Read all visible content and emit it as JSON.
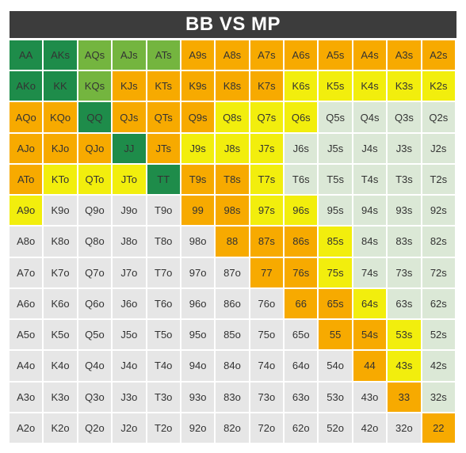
{
  "chart_data": {
    "type": "table",
    "title": "BB VS MP",
    "ranks": [
      "A",
      "K",
      "Q",
      "J",
      "T",
      "9",
      "8",
      "7",
      "6",
      "5",
      "4",
      "3",
      "2"
    ],
    "colors": {
      "D": "#1e8c4a",
      "L": "#74b53f",
      "O": "#f7aa00",
      "Y": "#f2ee0d",
      "G": "#dbe8d6",
      "W": "#e6e6e6"
    },
    "rows": [
      {
        "labels": [
          "AA",
          "AKs",
          "AQs",
          "AJs",
          "ATs",
          "A9s",
          "A8s",
          "A7s",
          "A6s",
          "A5s",
          "A4s",
          "A3s",
          "A2s"
        ],
        "colors": "DDLLLOOOOOOOO"
      },
      {
        "labels": [
          "AKo",
          "KK",
          "KQs",
          "KJs",
          "KTs",
          "K9s",
          "K8s",
          "K7s",
          "K6s",
          "K5s",
          "K4s",
          "K3s",
          "K2s"
        ],
        "colors": "DDLOOOOOYYYYY"
      },
      {
        "labels": [
          "AQo",
          "KQo",
          "QQ",
          "QJs",
          "QTs",
          "Q9s",
          "Q8s",
          "Q7s",
          "Q6s",
          "Q5s",
          "Q4s",
          "Q3s",
          "Q2s"
        ],
        "colors": "OODOOOYYYGGGG"
      },
      {
        "labels": [
          "AJo",
          "KJo",
          "QJo",
          "JJ",
          "JTs",
          "J9s",
          "J8s",
          "J7s",
          "J6s",
          "J5s",
          "J4s",
          "J3s",
          "J2s"
        ],
        "colors": "OOODOYYYGGGGG"
      },
      {
        "labels": [
          "ATo",
          "KTo",
          "QTo",
          "JTo",
          "TT",
          "T9s",
          "T8s",
          "T7s",
          "T6s",
          "T5s",
          "T4s",
          "T3s",
          "T2s"
        ],
        "colors": "OYYYDOOYGGGGG"
      },
      {
        "labels": [
          "A9o",
          "K9o",
          "Q9o",
          "J9o",
          "T9o",
          "99",
          "98s",
          "97s",
          "96s",
          "95s",
          "94s",
          "93s",
          "92s"
        ],
        "colors": "YWWWWOOYYGGGG"
      },
      {
        "labels": [
          "A8o",
          "K8o",
          "Q8o",
          "J8o",
          "T8o",
          "98o",
          "88",
          "87s",
          "86s",
          "85s",
          "84s",
          "83s",
          "82s"
        ],
        "colors": "WWWWWWOOOYGGG"
      },
      {
        "labels": [
          "A7o",
          "K7o",
          "Q7o",
          "J7o",
          "T7o",
          "97o",
          "87o",
          "77",
          "76s",
          "75s",
          "74s",
          "73s",
          "72s"
        ],
        "colors": "WWWWWWWOOYGGG"
      },
      {
        "labels": [
          "A6o",
          "K6o",
          "Q6o",
          "J6o",
          "T6o",
          "96o",
          "86o",
          "76o",
          "66",
          "65s",
          "64s",
          "63s",
          "62s"
        ],
        "colors": "WWWWWWWWOOYGG"
      },
      {
        "labels": [
          "A5o",
          "K5o",
          "Q5o",
          "J5o",
          "T5o",
          "95o",
          "85o",
          "75o",
          "65o",
          "55",
          "54s",
          "53s",
          "52s"
        ],
        "colors": "WWWWWWWWWOOYG"
      },
      {
        "labels": [
          "A4o",
          "K4o",
          "Q4o",
          "J4o",
          "T4o",
          "94o",
          "84o",
          "74o",
          "64o",
          "54o",
          "44",
          "43s",
          "42s"
        ],
        "colors": "WWWWWWWWWWOYG"
      },
      {
        "labels": [
          "A3o",
          "K3o",
          "Q3o",
          "J3o",
          "T3o",
          "93o",
          "83o",
          "73o",
          "63o",
          "53o",
          "43o",
          "33",
          "32s"
        ],
        "colors": "WWWWWWWWWWWOG"
      },
      {
        "labels": [
          "A2o",
          "K2o",
          "Q2o",
          "J2o",
          "T2o",
          "92o",
          "82o",
          "72o",
          "62o",
          "52o",
          "42o",
          "32o",
          "22"
        ],
        "colors": "WWWWWWWWWWWWO"
      }
    ]
  }
}
